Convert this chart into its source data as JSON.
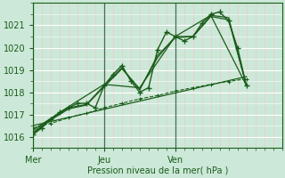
{
  "bg_color": "#cce8d8",
  "plot_bg_color": "#cce8d8",
  "grid_color_major": "#ffffff",
  "grid_color_minor": "#f0c8c8",
  "vline_color": "#556655",
  "line_color": "#1a5c1a",
  "axis_color": "#1a5c1a",
  "text_color": "#1a5c1a",
  "xlabel": "Pression niveau de la mer( hPa )",
  "xlim": [
    0,
    84
  ],
  "ylim": [
    1015.5,
    1022.0
  ],
  "yticks": [
    1016,
    1017,
    1018,
    1019,
    1020,
    1021
  ],
  "xtick_labels": [
    "Mer",
    "Jeu",
    "Ven"
  ],
  "xtick_positions": [
    0,
    24,
    48
  ],
  "vline_positions": [
    0,
    24,
    48
  ],
  "series": {
    "main": {
      "x": [
        0,
        3,
        6,
        9,
        12,
        15,
        18,
        21,
        24,
        27,
        30,
        33,
        36,
        39,
        42,
        45,
        48,
        51,
        54,
        57,
        60,
        63,
        66,
        69,
        72
      ],
      "y": [
        1016.1,
        1016.4,
        1016.8,
        1017.1,
        1017.3,
        1017.5,
        1017.5,
        1017.3,
        1018.3,
        1018.8,
        1019.2,
        1018.5,
        1018.0,
        1018.2,
        1019.9,
        1020.7,
        1020.5,
        1020.3,
        1020.5,
        1021.1,
        1021.5,
        1021.6,
        1021.2,
        1020.0,
        1018.3
      ]
    },
    "smooth1": {
      "x": [
        0,
        6,
        12,
        18,
        24,
        30,
        36,
        42,
        48,
        54,
        60,
        66,
        72
      ],
      "y": [
        1016.15,
        1016.75,
        1017.25,
        1017.42,
        1018.25,
        1019.05,
        1018.15,
        1019.55,
        1020.5,
        1020.5,
        1021.45,
        1021.35,
        1018.3
      ]
    },
    "smooth2": {
      "x": [
        0,
        6,
        12,
        18,
        24,
        30,
        36,
        42,
        48,
        54,
        60,
        66,
        72
      ],
      "y": [
        1016.2,
        1016.8,
        1017.3,
        1017.45,
        1018.3,
        1019.1,
        1018.1,
        1019.65,
        1020.45,
        1020.5,
        1021.4,
        1021.25,
        1018.3
      ]
    },
    "smooth3": {
      "x": [
        0,
        12,
        24,
        36,
        48,
        60,
        72
      ],
      "y": [
        1016.3,
        1017.35,
        1018.35,
        1018.2,
        1020.5,
        1021.45,
        1018.3
      ]
    },
    "trend": {
      "x": [
        0,
        72
      ],
      "y": [
        1016.5,
        1018.7
      ]
    },
    "slow_rise": {
      "x": [
        0,
        6,
        12,
        18,
        24,
        30,
        36,
        42,
        48,
        54,
        60,
        66,
        72
      ],
      "y": [
        1016.4,
        1016.6,
        1016.85,
        1017.05,
        1017.3,
        1017.5,
        1017.7,
        1017.85,
        1018.05,
        1018.2,
        1018.35,
        1018.48,
        1018.6
      ]
    }
  }
}
